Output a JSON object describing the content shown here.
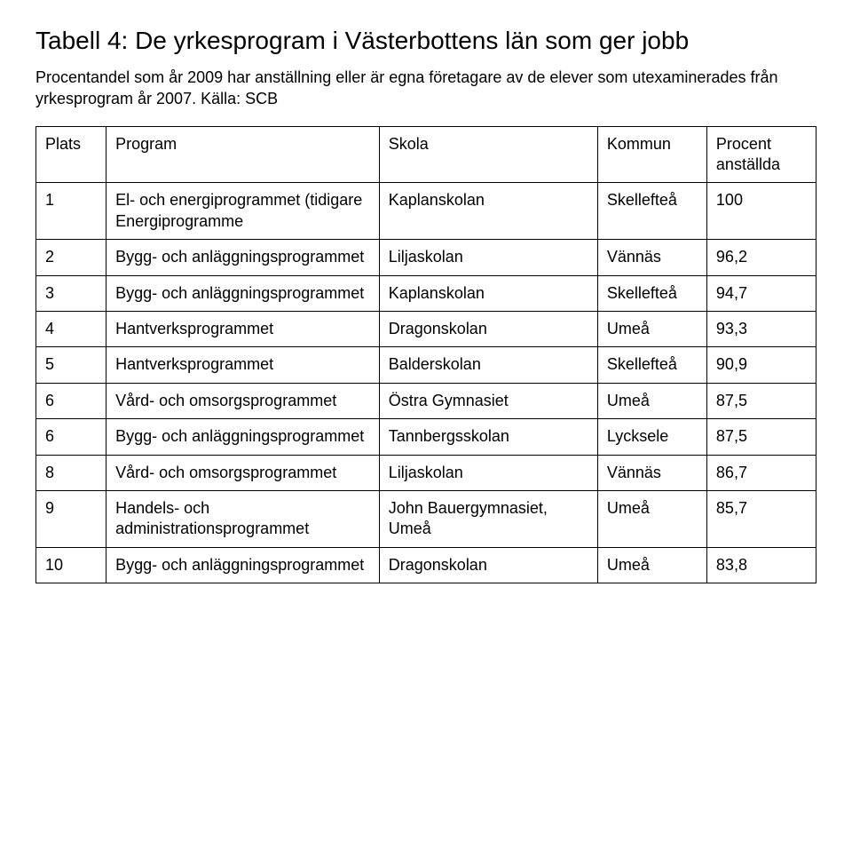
{
  "title": "Tabell 4: De yrkesprogram i Västerbottens län som ger jobb",
  "subtitle": "Procentandel som år 2009 har anställning eller är egna företagare av de elever som utexaminerades från yrkesprogram år 2007. Källa: SCB",
  "columns": [
    "Plats",
    "Program",
    "Skola",
    "Kommun",
    "Procent anställda"
  ],
  "rows": [
    {
      "plats": "1",
      "program": "El- och energiprogrammet (tidigare Energiprogramme",
      "skola": "Kaplanskolan",
      "kommun": "Skellefteå",
      "procent": "100"
    },
    {
      "plats": "2",
      "program": "Bygg- och anläggningsprogrammet",
      "skola": "Liljaskolan",
      "kommun": "Vännäs",
      "procent": "96,2"
    },
    {
      "plats": "3",
      "program": "Bygg- och anläggningsprogrammet",
      "skola": "Kaplanskolan",
      "kommun": "Skellefteå",
      "procent": "94,7"
    },
    {
      "plats": "4",
      "program": "Hantverksprogrammet",
      "skola": "Dragonskolan",
      "kommun": "Umeå",
      "procent": "93,3"
    },
    {
      "plats": "5",
      "program": "Hantverksprogrammet",
      "skola": "Balderskolan",
      "kommun": "Skellefteå",
      "procent": "90,9"
    },
    {
      "plats": "6",
      "program": "Vård- och omsorgsprogrammet",
      "skola": "Östra Gymnasiet",
      "kommun": "Umeå",
      "procent": "87,5"
    },
    {
      "plats": "6",
      "program": "Bygg- och anläggningsprogrammet",
      "skola": "Tannbergsskolan",
      "kommun": "Lycksele",
      "procent": "87,5"
    },
    {
      "plats": "8",
      "program": "Vård- och omsorgsprogrammet",
      "skola": "Liljaskolan",
      "kommun": "Vännäs",
      "procent": "86,7"
    },
    {
      "plats": "9",
      "program": "Handels- och administrationsprogrammet",
      "skola": "John Bauergymnasiet, Umeå",
      "kommun": "Umeå",
      "procent": "85,7"
    },
    {
      "plats": "10",
      "program": "Bygg- och anläggningsprogrammet",
      "skola": "Dragonskolan",
      "kommun": "Umeå",
      "procent": "83,8"
    }
  ]
}
